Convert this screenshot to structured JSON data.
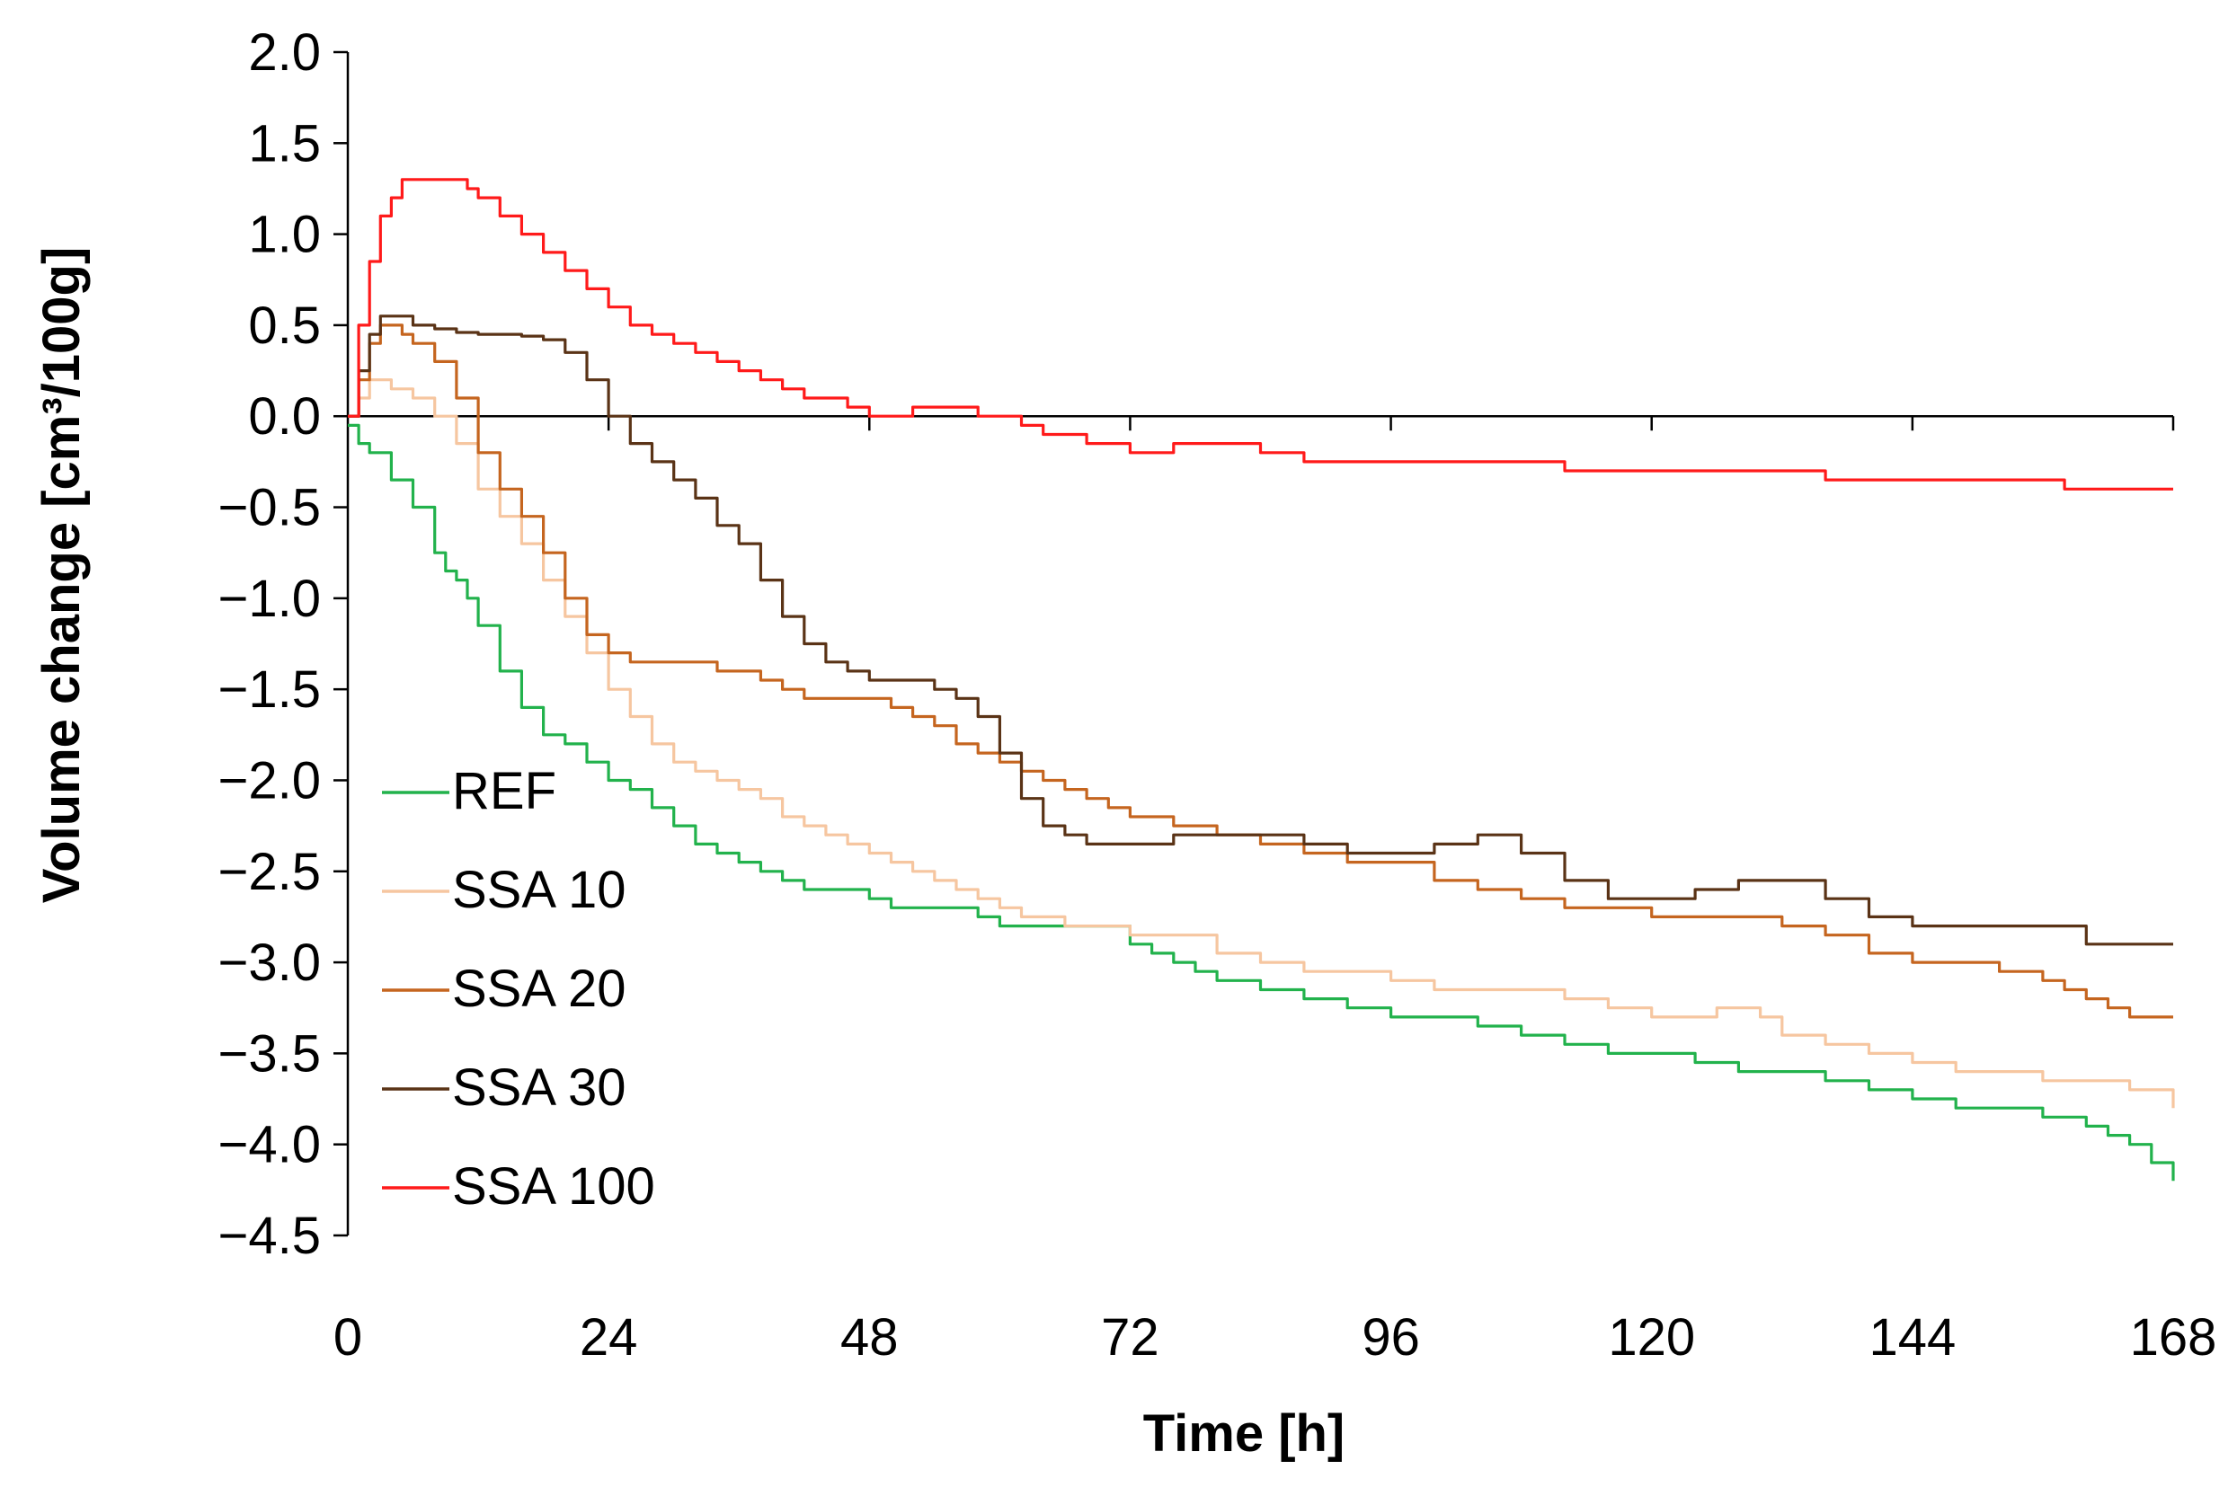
{
  "chart_data": {
    "type": "line",
    "title": "",
    "xlabel": "Time [h]",
    "ylabel": "Volume change [cm³/100g]",
    "xlim": [
      0,
      168
    ],
    "ylim": [
      -4.5,
      2.0
    ],
    "xticks": [
      0,
      24,
      48,
      72,
      96,
      120,
      144,
      168
    ],
    "yticks": [
      2.0,
      1.5,
      1.0,
      0.5,
      0.0,
      -0.5,
      -1.0,
      -1.5,
      -2.0,
      -2.5,
      -3.0,
      -3.5,
      -4.0,
      -4.5
    ],
    "xtick_labels": [
      "0",
      "24",
      "48",
      "72",
      "96",
      "120",
      "144",
      "168"
    ],
    "ytick_labels": [
      "2.0",
      "1.5",
      "1.0",
      "0.5",
      "0.0",
      "−0.5",
      "−1.0",
      "−1.5",
      "−2.0",
      "−2.5",
      "−3.0",
      "−3.5",
      "−4.0",
      "−4.5"
    ],
    "grid": false,
    "legend_position": "lower-left",
    "series": [
      {
        "name": "REF",
        "color": "#22b24c",
        "x": [
          0,
          1,
          2,
          4,
          6,
          8,
          9,
          10,
          11,
          12,
          14,
          16,
          18,
          20,
          22,
          24,
          26,
          28,
          30,
          32,
          34,
          36,
          38,
          40,
          42,
          44,
          46,
          48,
          50,
          52,
          54,
          56,
          58,
          60,
          62,
          64,
          66,
          68,
          70,
          72,
          74,
          76,
          78,
          80,
          84,
          88,
          92,
          96,
          100,
          104,
          108,
          112,
          116,
          120,
          124,
          128,
          132,
          136,
          140,
          144,
          148,
          152,
          156,
          160,
          162,
          164,
          166,
          168
        ],
        "values": [
          -0.05,
          -0.15,
          -0.2,
          -0.35,
          -0.5,
          -0.75,
          -0.85,
          -0.9,
          -1.0,
          -1.15,
          -1.4,
          -1.6,
          -1.75,
          -1.8,
          -1.9,
          -2.0,
          -2.05,
          -2.15,
          -2.25,
          -2.35,
          -2.4,
          -2.45,
          -2.5,
          -2.55,
          -2.6,
          -2.6,
          -2.6,
          -2.65,
          -2.7,
          -2.7,
          -2.7,
          -2.7,
          -2.75,
          -2.8,
          -2.8,
          -2.8,
          -2.8,
          -2.8,
          -2.8,
          -2.9,
          -2.95,
          -3.0,
          -3.05,
          -3.1,
          -3.15,
          -3.2,
          -3.25,
          -3.3,
          -3.3,
          -3.35,
          -3.4,
          -3.45,
          -3.5,
          -3.5,
          -3.55,
          -3.6,
          -3.6,
          -3.65,
          -3.7,
          -3.75,
          -3.8,
          -3.8,
          -3.85,
          -3.9,
          -3.95,
          -4.0,
          -4.1,
          -4.2
        ]
      },
      {
        "name": "SSA 10",
        "color": "#f6c6a0",
        "x": [
          0,
          1,
          2,
          3,
          4,
          6,
          8,
          10,
          12,
          14,
          16,
          18,
          20,
          22,
          24,
          26,
          28,
          30,
          32,
          34,
          36,
          38,
          40,
          42,
          44,
          46,
          48,
          50,
          52,
          54,
          56,
          58,
          60,
          62,
          64,
          66,
          68,
          72,
          76,
          80,
          84,
          88,
          92,
          96,
          100,
          104,
          108,
          112,
          116,
          120,
          124,
          126,
          128,
          130,
          132,
          136,
          140,
          144,
          148,
          152,
          156,
          160,
          164,
          168
        ],
        "values": [
          0.0,
          0.1,
          0.2,
          0.2,
          0.15,
          0.1,
          0.0,
          -0.15,
          -0.4,
          -0.55,
          -0.7,
          -0.9,
          -1.1,
          -1.3,
          -1.5,
          -1.65,
          -1.8,
          -1.9,
          -1.95,
          -2.0,
          -2.05,
          -2.1,
          -2.2,
          -2.25,
          -2.3,
          -2.35,
          -2.4,
          -2.45,
          -2.5,
          -2.55,
          -2.6,
          -2.65,
          -2.7,
          -2.75,
          -2.75,
          -2.8,
          -2.8,
          -2.85,
          -2.85,
          -2.95,
          -3.0,
          -3.05,
          -3.05,
          -3.1,
          -3.15,
          -3.15,
          -3.15,
          -3.2,
          -3.25,
          -3.3,
          -3.3,
          -3.25,
          -3.25,
          -3.3,
          -3.4,
          -3.45,
          -3.5,
          -3.55,
          -3.6,
          -3.6,
          -3.65,
          -3.65,
          -3.7,
          -3.8
        ]
      },
      {
        "name": "SSA 20",
        "color": "#c5651f",
        "x": [
          0,
          1,
          2,
          3,
          4,
          5,
          6,
          8,
          10,
          12,
          14,
          16,
          18,
          20,
          22,
          24,
          26,
          28,
          30,
          32,
          34,
          36,
          38,
          40,
          42,
          44,
          46,
          48,
          50,
          52,
          54,
          56,
          58,
          60,
          62,
          64,
          66,
          68,
          70,
          72,
          76,
          80,
          84,
          88,
          92,
          96,
          100,
          104,
          108,
          112,
          116,
          120,
          124,
          128,
          132,
          136,
          140,
          144,
          148,
          152,
          156,
          158,
          160,
          162,
          164,
          166,
          168
        ],
        "values": [
          0.0,
          0.2,
          0.4,
          0.5,
          0.5,
          0.45,
          0.4,
          0.3,
          0.1,
          -0.2,
          -0.4,
          -0.55,
          -0.75,
          -1.0,
          -1.2,
          -1.3,
          -1.35,
          -1.35,
          -1.35,
          -1.35,
          -1.4,
          -1.4,
          -1.45,
          -1.5,
          -1.55,
          -1.55,
          -1.55,
          -1.55,
          -1.6,
          -1.65,
          -1.7,
          -1.8,
          -1.85,
          -1.9,
          -1.95,
          -2.0,
          -2.05,
          -2.1,
          -2.15,
          -2.2,
          -2.25,
          -2.3,
          -2.35,
          -2.4,
          -2.45,
          -2.45,
          -2.55,
          -2.6,
          -2.65,
          -2.7,
          -2.7,
          -2.75,
          -2.75,
          -2.75,
          -2.8,
          -2.85,
          -2.95,
          -3.0,
          -3.0,
          -3.05,
          -3.1,
          -3.15,
          -3.2,
          -3.25,
          -3.3,
          -3.3,
          -3.3
        ]
      },
      {
        "name": "SSA 30",
        "color": "#5a3316",
        "x": [
          0,
          1,
          2,
          3,
          4,
          6,
          8,
          10,
          12,
          14,
          16,
          18,
          20,
          22,
          24,
          26,
          28,
          30,
          32,
          34,
          36,
          38,
          40,
          42,
          44,
          46,
          48,
          50,
          52,
          54,
          56,
          58,
          60,
          62,
          64,
          66,
          68,
          72,
          76,
          80,
          84,
          88,
          92,
          96,
          100,
          104,
          108,
          112,
          116,
          120,
          124,
          128,
          132,
          136,
          140,
          144,
          148,
          152,
          156,
          158,
          160,
          164,
          168
        ],
        "values": [
          0.0,
          0.25,
          0.45,
          0.55,
          0.55,
          0.5,
          0.48,
          0.46,
          0.45,
          0.45,
          0.44,
          0.42,
          0.35,
          0.2,
          0.0,
          -0.15,
          -0.25,
          -0.35,
          -0.45,
          -0.6,
          -0.7,
          -0.9,
          -1.1,
          -1.25,
          -1.35,
          -1.4,
          -1.45,
          -1.45,
          -1.45,
          -1.5,
          -1.55,
          -1.65,
          -1.85,
          -2.1,
          -2.25,
          -2.3,
          -2.35,
          -2.35,
          -2.3,
          -2.3,
          -2.3,
          -2.35,
          -2.4,
          -2.4,
          -2.35,
          -2.3,
          -2.4,
          -2.55,
          -2.65,
          -2.65,
          -2.6,
          -2.55,
          -2.55,
          -2.65,
          -2.75,
          -2.8,
          -2.8,
          -2.8,
          -2.8,
          -2.8,
          -2.9,
          -2.9,
          -2.9
        ]
      },
      {
        "name": "SSA 100",
        "color": "#ff1a1a",
        "x": [
          0,
          1,
          2,
          3,
          4,
          5,
          6,
          8,
          10,
          11,
          12,
          14,
          16,
          18,
          20,
          22,
          24,
          26,
          28,
          30,
          32,
          34,
          36,
          38,
          40,
          42,
          44,
          46,
          48,
          50,
          52,
          54,
          56,
          58,
          60,
          62,
          64,
          66,
          68,
          70,
          72,
          74,
          76,
          80,
          84,
          88,
          92,
          96,
          100,
          104,
          108,
          112,
          116,
          120,
          124,
          128,
          132,
          136,
          140,
          144,
          148,
          152,
          156,
          158,
          160,
          164,
          168
        ],
        "values": [
          0.0,
          0.5,
          0.85,
          1.1,
          1.2,
          1.3,
          1.3,
          1.3,
          1.3,
          1.25,
          1.2,
          1.1,
          1.0,
          0.9,
          0.8,
          0.7,
          0.6,
          0.5,
          0.45,
          0.4,
          0.35,
          0.3,
          0.25,
          0.2,
          0.15,
          0.1,
          0.1,
          0.05,
          0.0,
          0.0,
          0.05,
          0.05,
          0.05,
          0.0,
          0.0,
          -0.05,
          -0.1,
          -0.1,
          -0.15,
          -0.15,
          -0.2,
          -0.2,
          -0.15,
          -0.15,
          -0.2,
          -0.25,
          -0.25,
          -0.25,
          -0.25,
          -0.25,
          -0.25,
          -0.3,
          -0.3,
          -0.3,
          -0.3,
          -0.3,
          -0.3,
          -0.35,
          -0.35,
          -0.35,
          -0.35,
          -0.35,
          -0.35,
          -0.4,
          -0.4,
          -0.4,
          -0.4
        ]
      }
    ]
  }
}
